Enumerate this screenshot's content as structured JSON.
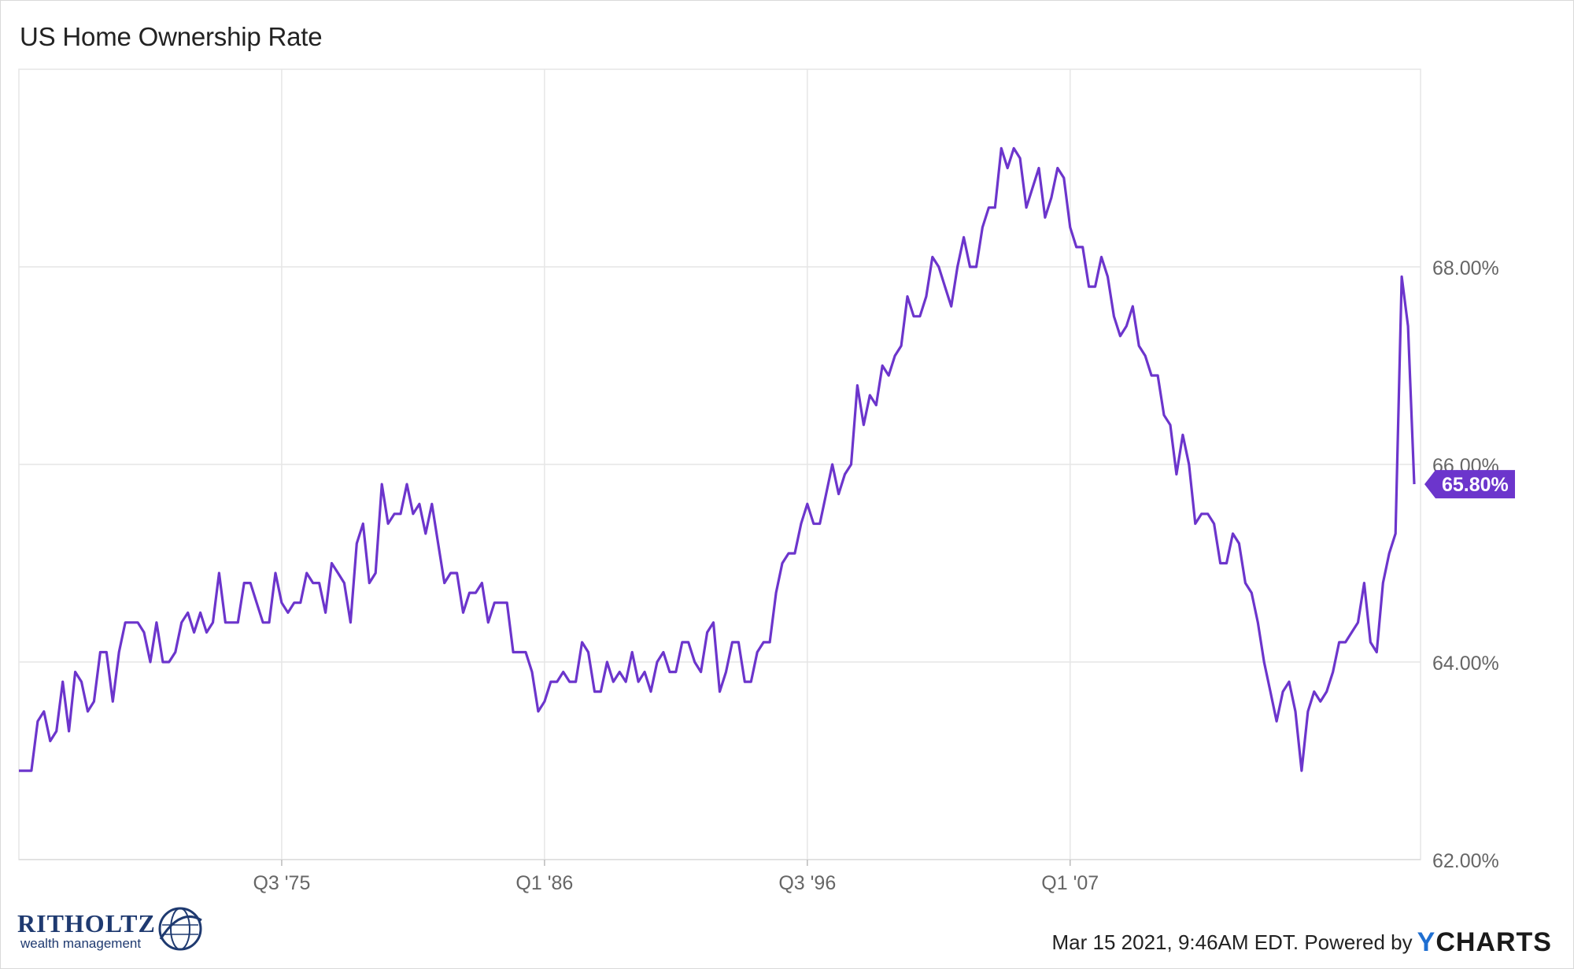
{
  "title": "US Home Ownership Rate",
  "footer": {
    "text": "Mar 15 2021, 9:46AM EDT. Powered by",
    "brand_y": "Y",
    "brand_rest": "CHARTS"
  },
  "logo": {
    "name": "RITHOLTZ",
    "tagline": "wealth management"
  },
  "colors": {
    "line": "#6c35cc",
    "grid": "#e6e6e6",
    "axis_text": "#666666",
    "badge": "#6c35cc"
  },
  "chart_data": {
    "type": "line",
    "title": "US Home Ownership Rate",
    "x_ticks": [
      "Q3 '75",
      "Q1 '86",
      "Q3 '96",
      "Q1 '07"
    ],
    "x_tick_values": [
      1975.5,
      1986.0,
      1996.5,
      2007.0
    ],
    "y_ticks": [
      "62.00%",
      "64.00%",
      "66.00%",
      "68.00%"
    ],
    "y_tick_values": [
      62,
      64,
      66,
      68
    ],
    "ylim": [
      62,
      70.0
    ],
    "xlim": [
      1965.0,
      2021.0
    ],
    "last_value_label": "65.80%",
    "grid": true,
    "series": [
      {
        "x_start": 1965.0,
        "x_step": 0.25,
        "values": [
          62.9,
          62.9,
          62.9,
          63.4,
          63.5,
          63.2,
          63.3,
          63.8,
          63.3,
          63.9,
          63.8,
          63.5,
          63.6,
          64.1,
          64.1,
          63.6,
          64.1,
          64.4,
          64.4,
          64.4,
          64.3,
          64.0,
          64.4,
          64.0,
          64.0,
          64.1,
          64.4,
          64.5,
          64.3,
          64.5,
          64.3,
          64.4,
          64.9,
          64.4,
          64.4,
          64.4,
          64.8,
          64.8,
          64.6,
          64.4,
          64.4,
          64.9,
          64.6,
          64.5,
          64.6,
          64.6,
          64.9,
          64.8,
          64.8,
          64.5,
          65.0,
          64.9,
          64.8,
          64.4,
          65.2,
          65.4,
          64.8,
          64.9,
          65.8,
          65.4,
          65.5,
          65.5,
          65.8,
          65.5,
          65.6,
          65.3,
          65.6,
          65.2,
          64.8,
          64.9,
          64.9,
          64.5,
          64.7,
          64.7,
          64.8,
          64.4,
          64.6,
          64.6,
          64.6,
          64.1,
          64.1,
          64.1,
          63.9,
          63.5,
          63.6,
          63.8,
          63.8,
          63.9,
          63.8,
          63.8,
          64.2,
          64.1,
          63.7,
          63.7,
          64.0,
          63.8,
          63.9,
          63.8,
          64.1,
          63.8,
          63.9,
          63.7,
          64.0,
          64.1,
          63.9,
          63.9,
          64.2,
          64.2,
          64.0,
          63.9,
          64.3,
          64.4,
          63.7,
          63.9,
          64.2,
          64.2,
          63.8,
          63.8,
          64.1,
          64.2,
          64.2,
          64.7,
          65.0,
          65.1,
          65.1,
          65.4,
          65.6,
          65.4,
          65.4,
          65.7,
          66.0,
          65.7,
          65.9,
          66.0,
          66.8,
          66.4,
          66.7,
          66.6,
          67.0,
          66.9,
          67.1,
          67.2,
          67.7,
          67.5,
          67.5,
          67.7,
          68.1,
          68.0,
          67.8,
          67.6,
          68.0,
          68.3,
          68.0,
          68.0,
          68.4,
          68.6,
          68.6,
          69.2,
          69.0,
          69.2,
          69.1,
          68.6,
          68.8,
          69.0,
          68.5,
          68.7,
          69.0,
          68.9,
          68.4,
          68.2,
          68.2,
          67.8,
          67.8,
          68.1,
          67.9,
          67.5,
          67.3,
          67.4,
          67.6,
          67.2,
          67.1,
          66.9,
          66.9,
          66.5,
          66.4,
          65.9,
          66.3,
          66.0,
          65.4,
          65.5,
          65.5,
          65.4,
          65.0,
          65.0,
          65.3,
          65.2,
          64.8,
          64.7,
          64.4,
          64.0,
          63.7,
          63.4,
          63.7,
          63.8,
          63.5,
          62.9,
          63.5,
          63.7,
          63.6,
          63.7,
          63.9,
          64.2,
          64.2,
          64.3,
          64.4,
          64.8,
          64.2,
          64.1,
          64.8,
          65.1,
          65.3,
          67.9,
          67.4,
          65.8
        ]
      }
    ]
  }
}
